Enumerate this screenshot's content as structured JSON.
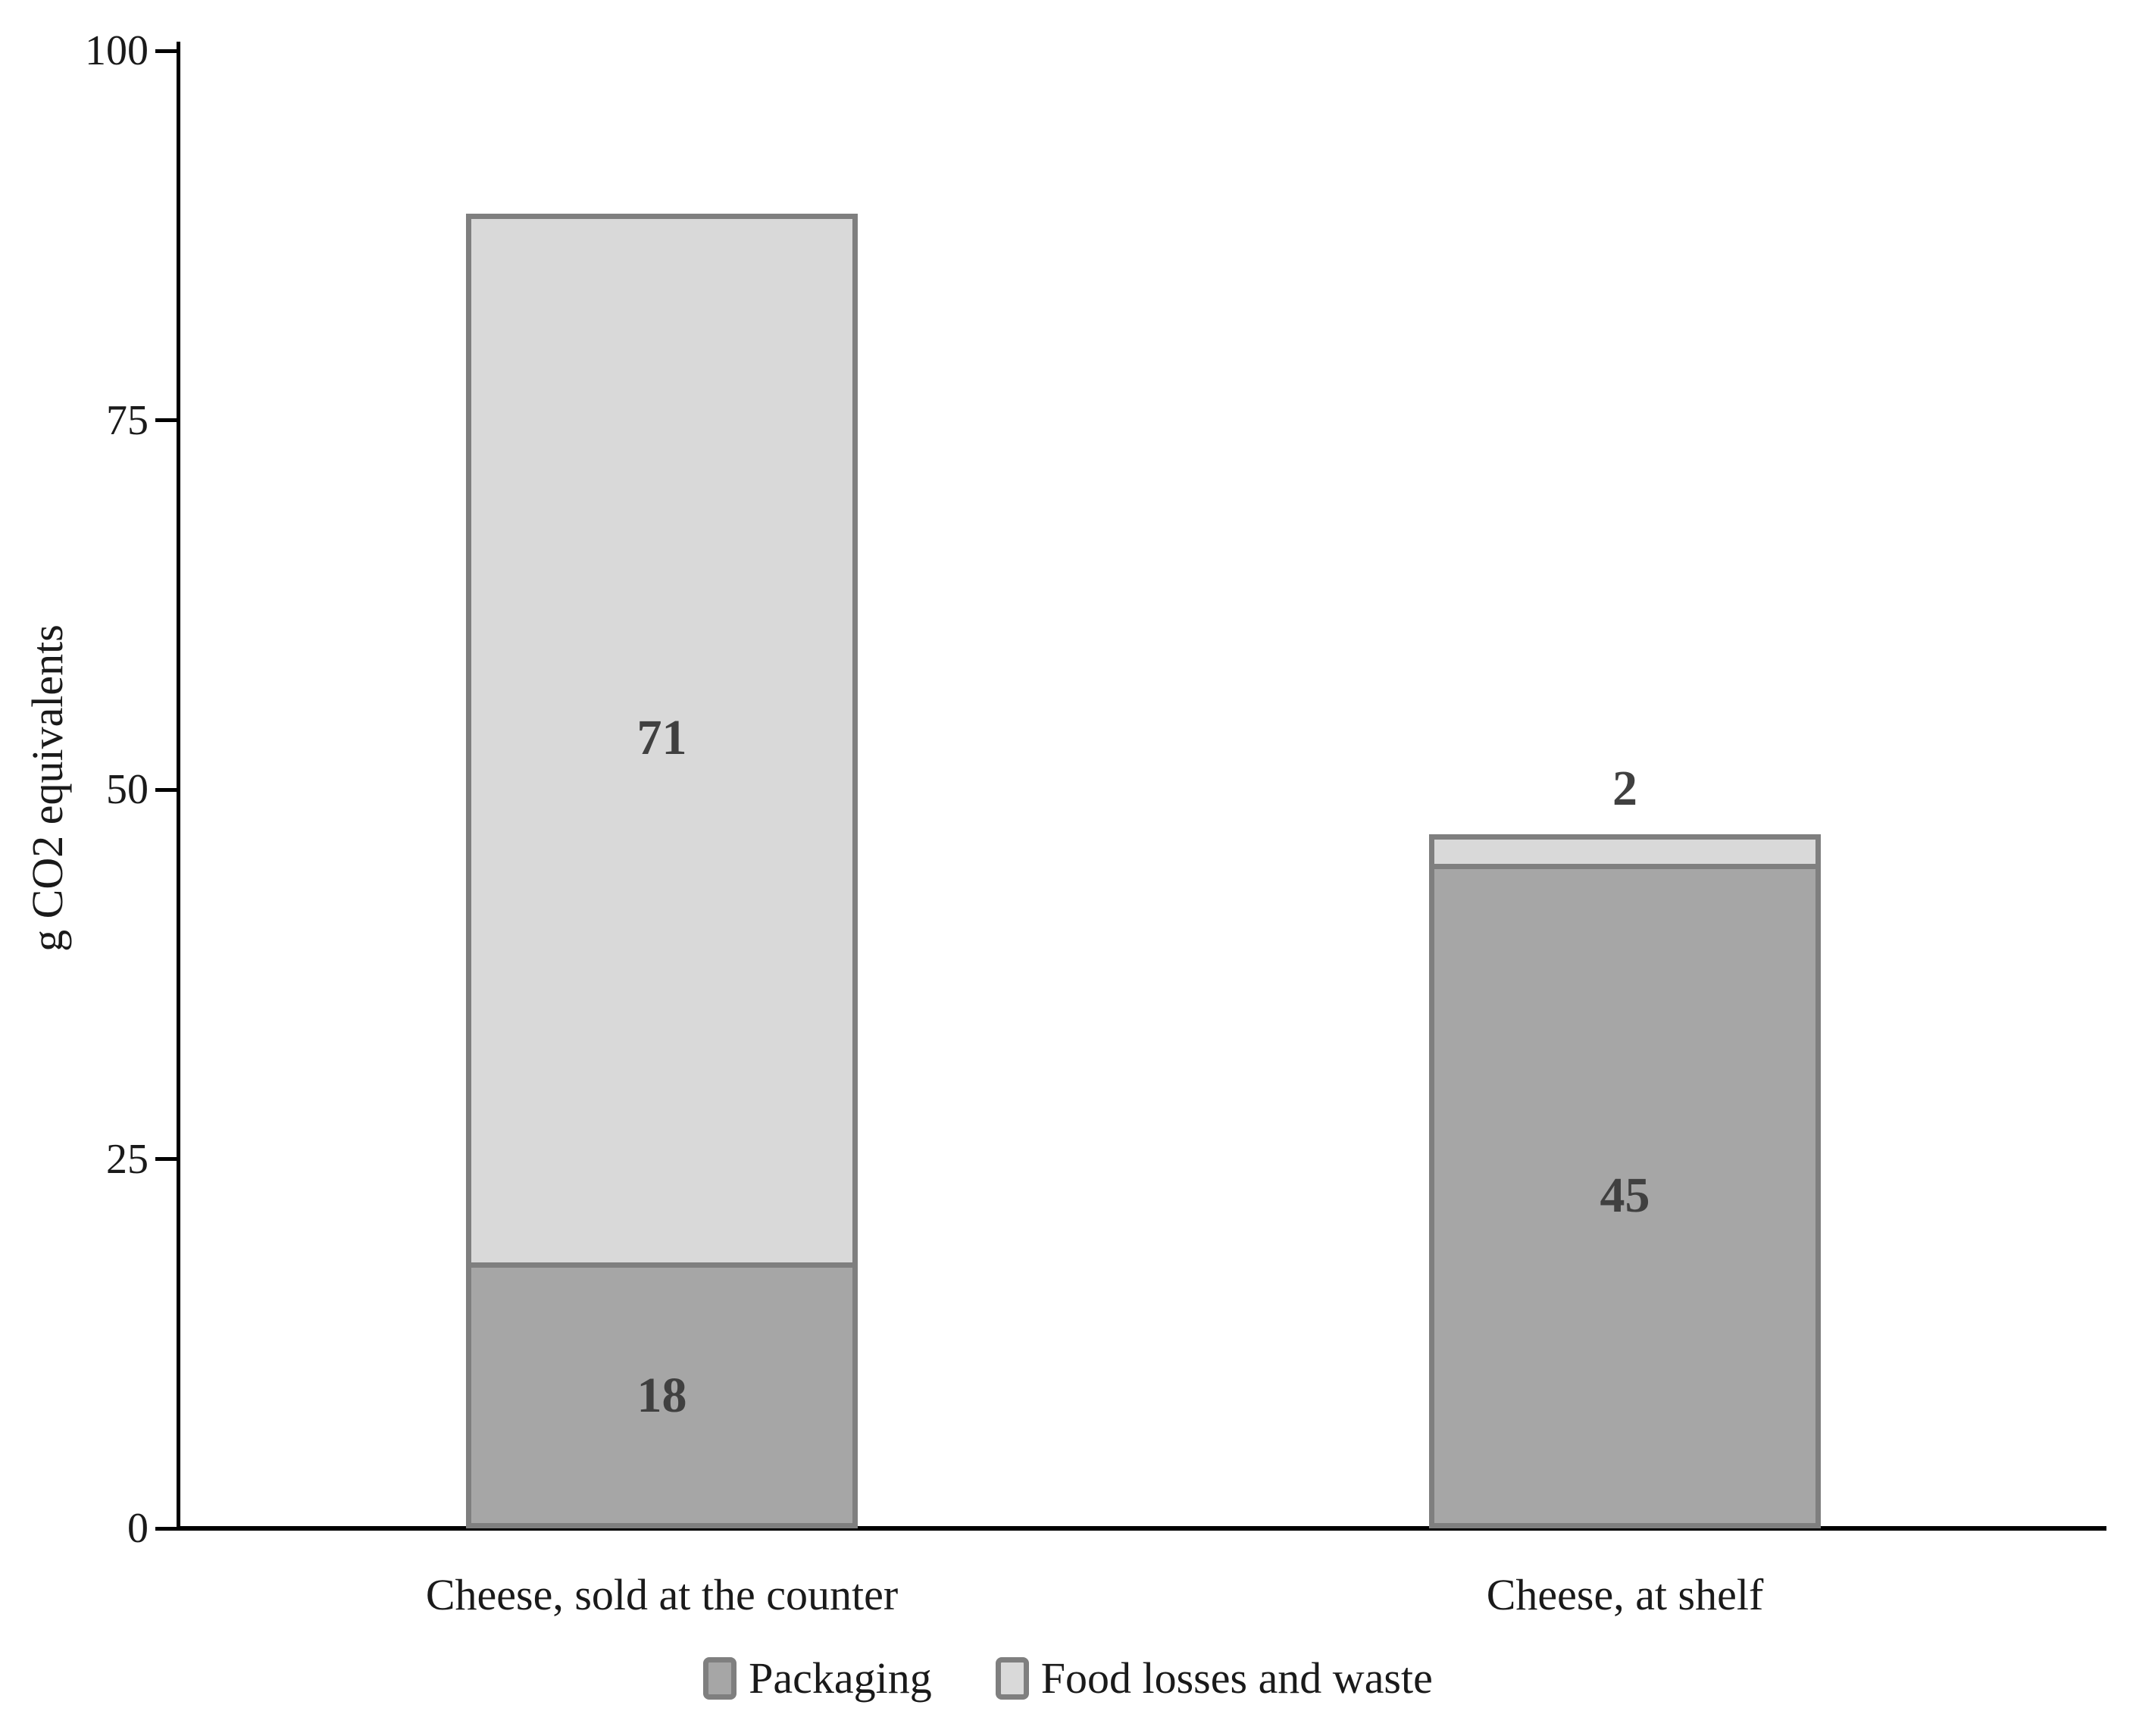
{
  "chart_data": {
    "type": "bar",
    "subtype": "stacked",
    "title": "",
    "ylabel": "g CO2 equivalents",
    "xlabel": "",
    "ylim": [
      0,
      100
    ],
    "yticks": [
      0,
      25,
      50,
      75,
      100
    ],
    "grid": false,
    "legend_position": "bottom",
    "categories": [
      "Cheese, sold at the counter",
      "Cheese, at shelf"
    ],
    "series": [
      {
        "name": "Packaging",
        "values": [
          18,
          45
        ],
        "fill": "#a6a6a6",
        "border": "#7f7f7f"
      },
      {
        "name": "Food losses and waste",
        "values": [
          71,
          2
        ],
        "fill": "#d9d9d9",
        "border": "#7f7f7f"
      }
    ],
    "bar_totals": [
      89,
      47
    ],
    "value_label_color": "#404040",
    "axis_color": "#000000",
    "background_color": "#ffffff"
  }
}
